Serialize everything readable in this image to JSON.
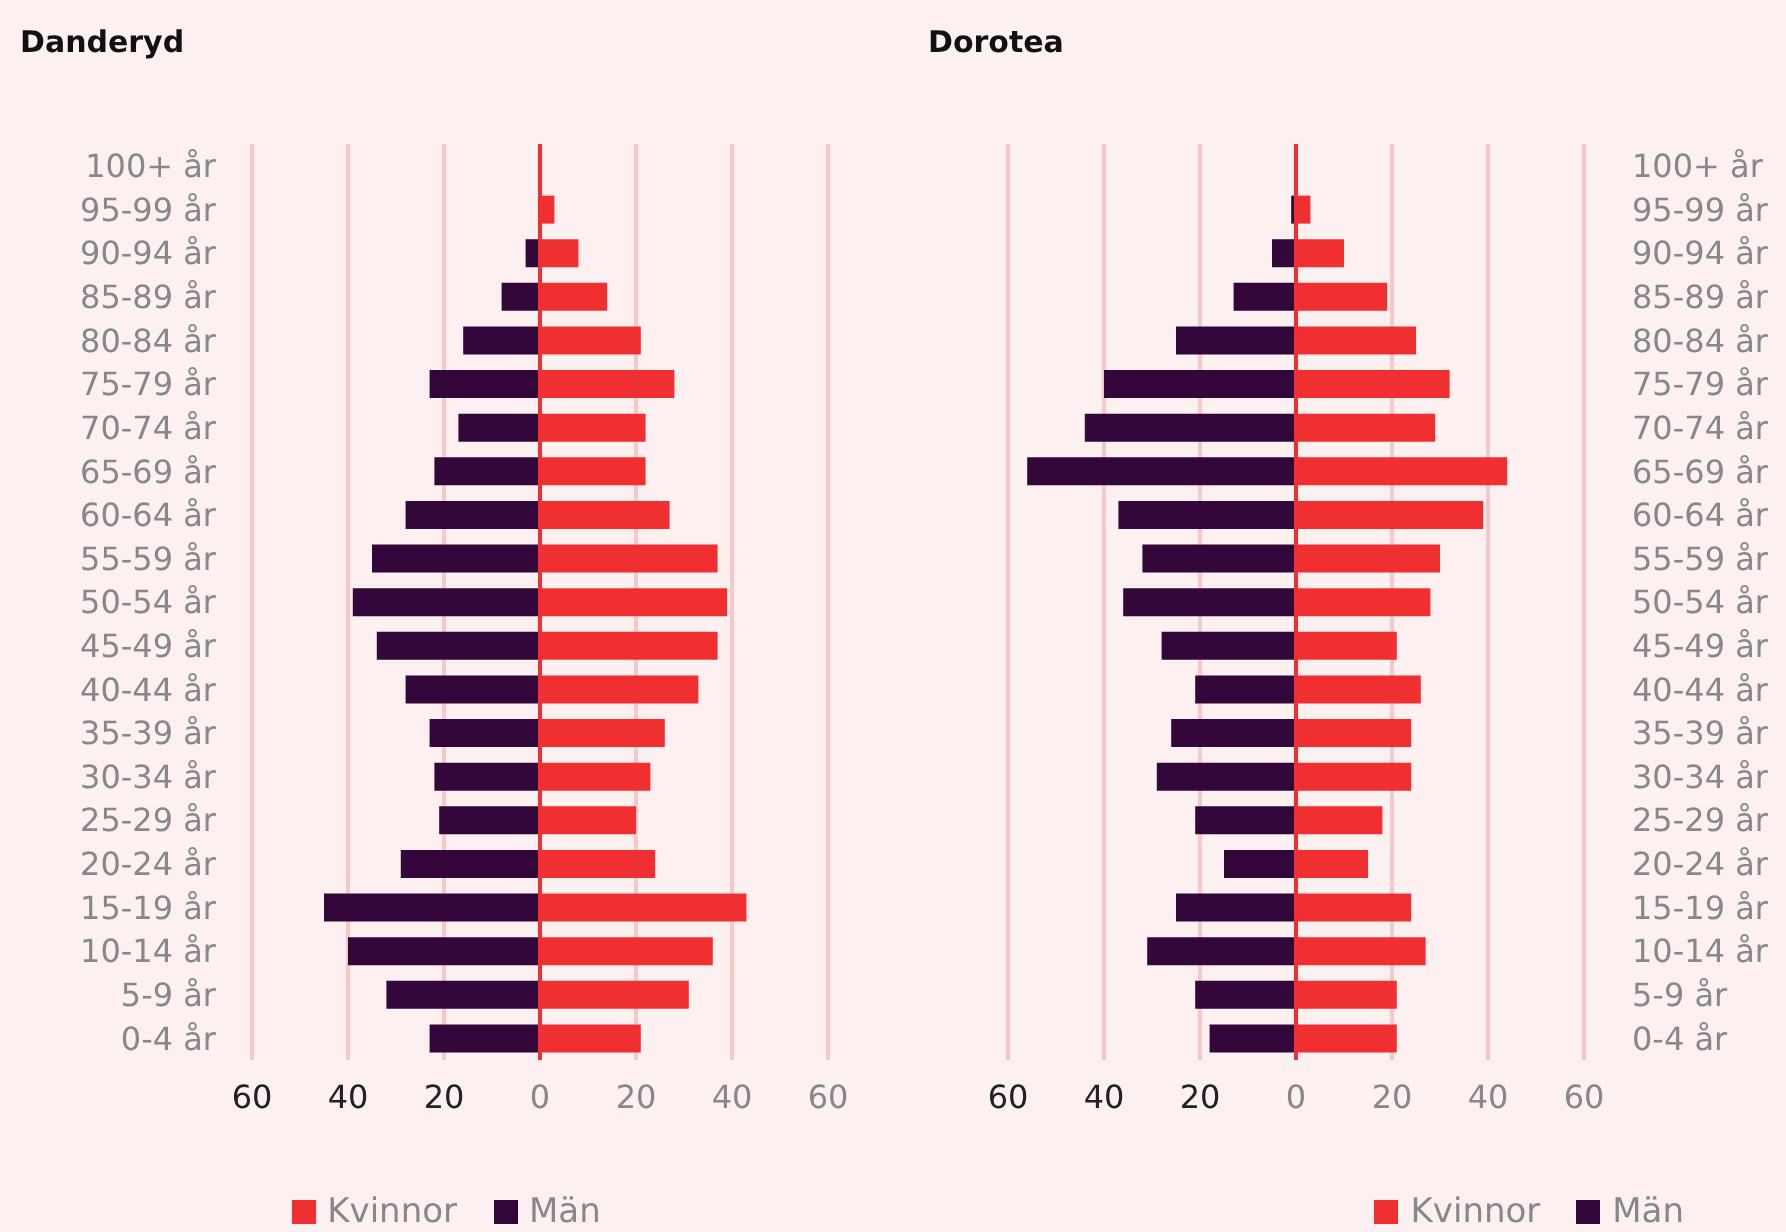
{
  "chart_data": [
    {
      "type": "bar",
      "title": "Danderyd",
      "orientation": "horizontal",
      "stacked": true,
      "categories": [
        "100+ år",
        "95-99 år",
        "90-94 år",
        "85-89 år",
        "80-84 år",
        "75-79 år",
        "70-74 år",
        "65-69 år",
        "60-64 år",
        "55-59 år",
        "50-54 år",
        "45-49 år",
        "40-44 år",
        "35-39 år",
        "30-34 år",
        "25-29 år",
        "20-24 år",
        "15-19 år",
        "10-14 år",
        "5-9 år",
        "0-4 år"
      ],
      "series": [
        {
          "name": "Kvinnor",
          "color": "#f03030",
          "values": [
            0,
            3,
            8,
            14,
            21,
            28,
            22,
            22,
            27,
            37,
            39,
            37,
            33,
            26,
            23,
            20,
            24,
            43,
            36,
            31,
            21
          ]
        },
        {
          "name": "Män",
          "color": "#33073a",
          "values": [
            0,
            0,
            -3,
            -8,
            -16,
            -23,
            -17,
            -22,
            -28,
            -35,
            -39,
            -34,
            -28,
            -23,
            -22,
            -21,
            -29,
            -45,
            -40,
            -32,
            -23
          ]
        }
      ],
      "xlim": [
        -60,
        60
      ],
      "xticks": [
        {
          "value": -60,
          "label": "60"
        },
        {
          "value": -40,
          "label": "40"
        },
        {
          "value": -20,
          "label": "20"
        },
        0,
        20,
        40,
        60
      ],
      "ref_lines": [
        {
          "axis": "x",
          "value": 0,
          "color": "#f03030"
        }
      ],
      "grid": "x",
      "legend": "bottom"
    },
    {
      "type": "bar",
      "title": "Dorotea",
      "orientation": "horizontal",
      "stacked": true,
      "categories": [
        "100+ år",
        "95-99 år",
        "90-94 år",
        "85-89 år",
        "80-84 år",
        "75-79 år",
        "70-74 år",
        "65-69 år",
        "60-64 år",
        "55-59 år",
        "50-54 år",
        "45-49 år",
        "40-44 år",
        "35-39 år",
        "30-34 år",
        "25-29 år",
        "20-24 år",
        "15-19 år",
        "10-14 år",
        "5-9 år",
        "0-4 år"
      ],
      "series": [
        {
          "name": "Kvinnor",
          "color": "#f03030",
          "values": [
            0,
            3,
            10,
            19,
            25,
            32,
            29,
            44,
            39,
            30,
            28,
            21,
            26,
            24,
            24,
            18,
            15,
            24,
            27,
            21,
            21
          ]
        },
        {
          "name": "Män",
          "color": "#33073a",
          "values": [
            0,
            -1,
            -5,
            -13,
            -25,
            -40,
            -44,
            -56,
            -37,
            -32,
            -36,
            -28,
            -21,
            -26,
            -29,
            -21,
            -15,
            -25,
            -31,
            -21,
            -18
          ]
        }
      ],
      "xlim": [
        -60,
        60
      ],
      "xticks": [
        {
          "value": -60,
          "label": "60"
        },
        {
          "value": -40,
          "label": "40"
        },
        {
          "value": -20,
          "label": "20"
        },
        0,
        20,
        40,
        60
      ],
      "ref_lines": [
        {
          "axis": "x",
          "value": 0,
          "color": "#f03030"
        }
      ],
      "grid": "x",
      "legend": "bottom"
    }
  ]
}
